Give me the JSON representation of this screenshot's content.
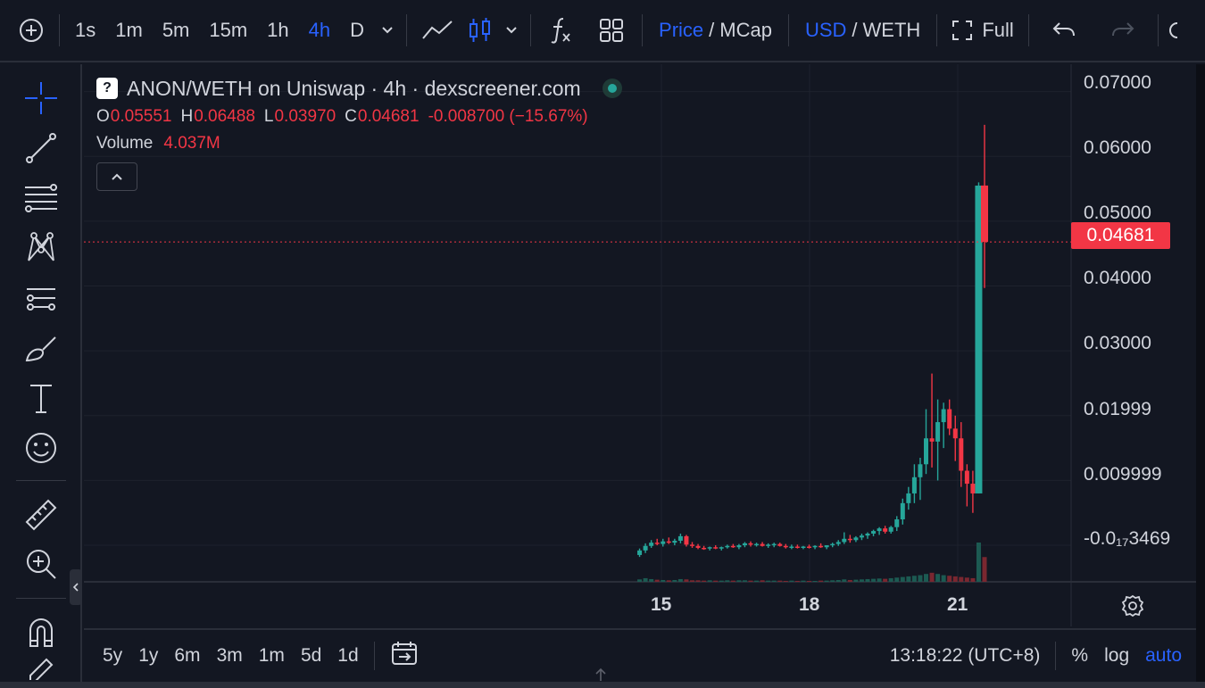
{
  "toolbar": {
    "intervals": [
      "1s",
      "1m",
      "5m",
      "15m",
      "1h",
      "4h",
      "D"
    ],
    "active_interval": "4h",
    "price_label": "Price",
    "mcap_label": "MCap",
    "slash": "/",
    "usd_label": "USD",
    "weth_label": "WETH",
    "full_label": "Full"
  },
  "legend": {
    "badge": "?",
    "title": "ANON/WETH on Uniswap · 4h · dexscreener.com",
    "o_label": "O",
    "o": "0.05551",
    "h_label": "H",
    "h": "0.06488",
    "l_label": "L",
    "l": "0.03970",
    "c_label": "C",
    "c": "0.04681",
    "change": "-0.008700 (−15.67%)",
    "volume_label": "Volume",
    "volume": "4.037M"
  },
  "price_axis": {
    "labels": [
      "0.07000",
      "0.06000",
      "0.05000",
      "0.04000",
      "0.03000",
      "0.01999",
      "0.009999",
      "-0.0₁₇3469"
    ],
    "current_price": "0.04681"
  },
  "time_axis": {
    "labels": [
      "15",
      "18",
      "21"
    ]
  },
  "bottombar": {
    "ranges": [
      "5y",
      "1y",
      "6m",
      "3m",
      "1m",
      "5d",
      "1d"
    ],
    "clock": "13:18:22 (UTC+8)",
    "percent_label": "%",
    "log_label": "log",
    "auto_label": "auto"
  },
  "colors": {
    "up": "#26a69a",
    "down": "#f23645",
    "background": "#131722",
    "accent": "#2962ff"
  },
  "chart_data": {
    "type": "candlestick",
    "pair": "ANON/WETH",
    "interval": "4h",
    "x_ticks": [
      "15",
      "18",
      "21"
    ],
    "ylim": [
      -0.0055,
      0.0745
    ],
    "candles": [
      {
        "o": -0.0015,
        "h": -0.0005,
        "l": -0.0018,
        "c": -0.0008
      },
      {
        "o": -0.0008,
        "h": 0.0003,
        "l": -0.0012,
        "c": -0.0001
      },
      {
        "o": -0.0001,
        "h": 0.0008,
        "l": -0.0004,
        "c": 0.0004
      },
      {
        "o": 0.0004,
        "h": 0.001,
        "l": 0.0,
        "c": 0.0002
      },
      {
        "o": 0.0002,
        "h": 0.001,
        "l": -0.0002,
        "c": 0.0006
      },
      {
        "o": 0.0006,
        "h": 0.0012,
        "l": 0.0002,
        "c": 0.0004
      },
      {
        "o": 0.0004,
        "h": 0.001,
        "l": 0.0,
        "c": 0.0007
      },
      {
        "o": 0.0007,
        "h": 0.0018,
        "l": 0.0003,
        "c": 0.0014
      },
      {
        "o": 0.0014,
        "h": 0.0016,
        "l": -0.0002,
        "c": 0.0001
      },
      {
        "o": 0.0001,
        "h": 0.0005,
        "l": -0.0004,
        "c": -0.0001
      },
      {
        "o": -0.0001,
        "h": 0.0002,
        "l": -0.0006,
        "c": -0.0004
      },
      {
        "o": -0.0004,
        "h": -0.0001,
        "l": -0.0007,
        "c": -0.0005
      },
      {
        "o": -0.0005,
        "h": -0.0002,
        "l": -0.0008,
        "c": -0.0003
      },
      {
        "o": -0.0003,
        "h": 0.0,
        "l": -0.0006,
        "c": -0.0005
      },
      {
        "o": -0.0005,
        "h": -0.0002,
        "l": -0.0008,
        "c": -0.0003
      },
      {
        "o": -0.0003,
        "h": 0.0001,
        "l": -0.0005,
        "c": -0.0001
      },
      {
        "o": -0.0001,
        "h": 0.0002,
        "l": -0.0004,
        "c": -0.0003
      },
      {
        "o": -0.0003,
        "h": 0.0002,
        "l": -0.0006,
        "c": 0.0
      },
      {
        "o": 0.0,
        "h": 0.0005,
        "l": -0.0003,
        "c": 0.0003
      },
      {
        "o": 0.0003,
        "h": 0.0006,
        "l": -0.0002,
        "c": 0.0001
      },
      {
        "o": 0.0001,
        "h": 0.0004,
        "l": -0.0002,
        "c": 0.0002
      },
      {
        "o": 0.0002,
        "h": 0.0005,
        "l": -0.0002,
        "c": -0.0001
      },
      {
        "o": -0.0001,
        "h": 0.0003,
        "l": -0.0004,
        "c": 0.0001
      },
      {
        "o": 0.0001,
        "h": 0.0004,
        "l": -0.0003,
        "c": 0.0002
      },
      {
        "o": 0.0002,
        "h": 0.0004,
        "l": -0.0002,
        "c": -0.0001
      },
      {
        "o": -0.0001,
        "h": 0.0002,
        "l": -0.0005,
        "c": -0.0003
      },
      {
        "o": -0.0003,
        "h": 0.0001,
        "l": -0.0006,
        "c": -0.0002
      },
      {
        "o": -0.0002,
        "h": 0.0001,
        "l": -0.0005,
        "c": -0.0004
      },
      {
        "o": -0.0004,
        "h": -0.0001,
        "l": -0.0006,
        "c": -0.0002
      },
      {
        "o": -0.0002,
        "h": 0.0001,
        "l": -0.0005,
        "c": -0.0003
      },
      {
        "o": -0.0003,
        "h": 0.0,
        "l": -0.0006,
        "c": -0.0001
      },
      {
        "o": -0.0001,
        "h": 0.0003,
        "l": -0.0004,
        "c": -0.0003
      },
      {
        "o": -0.0003,
        "h": 0.0,
        "l": -0.0006,
        "c": 0.0
      },
      {
        "o": 0.0,
        "h": 0.0004,
        "l": -0.0003,
        "c": 0.0002
      },
      {
        "o": 0.0002,
        "h": 0.0008,
        "l": -0.0001,
        "c": 0.0005
      },
      {
        "o": 0.0005,
        "h": 0.002,
        "l": 0.0002,
        "c": 0.001
      },
      {
        "o": 0.001,
        "h": 0.0016,
        "l": 0.0004,
        "c": 0.0008
      },
      {
        "o": 0.0008,
        "h": 0.0014,
        "l": 0.0005,
        "c": 0.0012
      },
      {
        "o": 0.0012,
        "h": 0.0018,
        "l": 0.0008,
        "c": 0.0015
      },
      {
        "o": 0.0015,
        "h": 0.002,
        "l": 0.001,
        "c": 0.0018
      },
      {
        "o": 0.0018,
        "h": 0.0024,
        "l": 0.0014,
        "c": 0.0022
      },
      {
        "o": 0.0022,
        "h": 0.0028,
        "l": 0.0016,
        "c": 0.0026
      },
      {
        "o": 0.0026,
        "h": 0.003,
        "l": 0.0018,
        "c": 0.0021
      },
      {
        "o": 0.0021,
        "h": 0.003,
        "l": 0.0018,
        "c": 0.0028
      },
      {
        "o": 0.0028,
        "h": 0.0045,
        "l": 0.0022,
        "c": 0.004
      },
      {
        "o": 0.004,
        "h": 0.0072,
        "l": 0.0032,
        "c": 0.0065
      },
      {
        "o": 0.0065,
        "h": 0.009,
        "l": 0.0055,
        "c": 0.008
      },
      {
        "o": 0.008,
        "h": 0.0125,
        "l": 0.0065,
        "c": 0.0105
      },
      {
        "o": 0.0105,
        "h": 0.0135,
        "l": 0.007,
        "c": 0.0125
      },
      {
        "o": 0.0125,
        "h": 0.021,
        "l": 0.011,
        "c": 0.0165
      },
      {
        "o": 0.0165,
        "h": 0.0265,
        "l": 0.012,
        "c": 0.016
      },
      {
        "o": 0.016,
        "h": 0.0225,
        "l": 0.01,
        "c": 0.019
      },
      {
        "o": 0.019,
        "h": 0.022,
        "l": 0.015,
        "c": 0.021
      },
      {
        "o": 0.021,
        "h": 0.0225,
        "l": 0.017,
        "c": 0.018
      },
      {
        "o": 0.018,
        "h": 0.02,
        "l": 0.013,
        "c": 0.0165
      },
      {
        "o": 0.0165,
        "h": 0.019,
        "l": 0.009,
        "c": 0.0115
      },
      {
        "o": 0.0115,
        "h": 0.0125,
        "l": 0.006,
        "c": 0.0095
      },
      {
        "o": 0.0095,
        "h": 0.0115,
        "l": 0.005,
        "c": 0.008
      },
      {
        "o": 0.008,
        "h": 0.056,
        "l": 0.008,
        "c": 0.0555
      },
      {
        "o": 0.05551,
        "h": 0.06488,
        "l": 0.0397,
        "c": 0.04681
      }
    ],
    "volume": [
      8,
      12,
      9,
      7,
      6,
      5,
      6,
      9,
      8,
      5,
      5,
      4,
      5,
      4,
      4,
      5,
      4,
      5,
      5,
      4,
      4,
      5,
      4,
      4,
      4,
      3,
      4,
      3,
      4,
      3,
      3,
      4,
      4,
      5,
      6,
      8,
      6,
      7,
      8,
      9,
      10,
      11,
      10,
      12,
      14,
      16,
      18,
      20,
      22,
      26,
      30,
      26,
      22,
      20,
      18,
      16,
      14,
      12,
      130,
      82
    ],
    "volume_unit": "relative"
  }
}
